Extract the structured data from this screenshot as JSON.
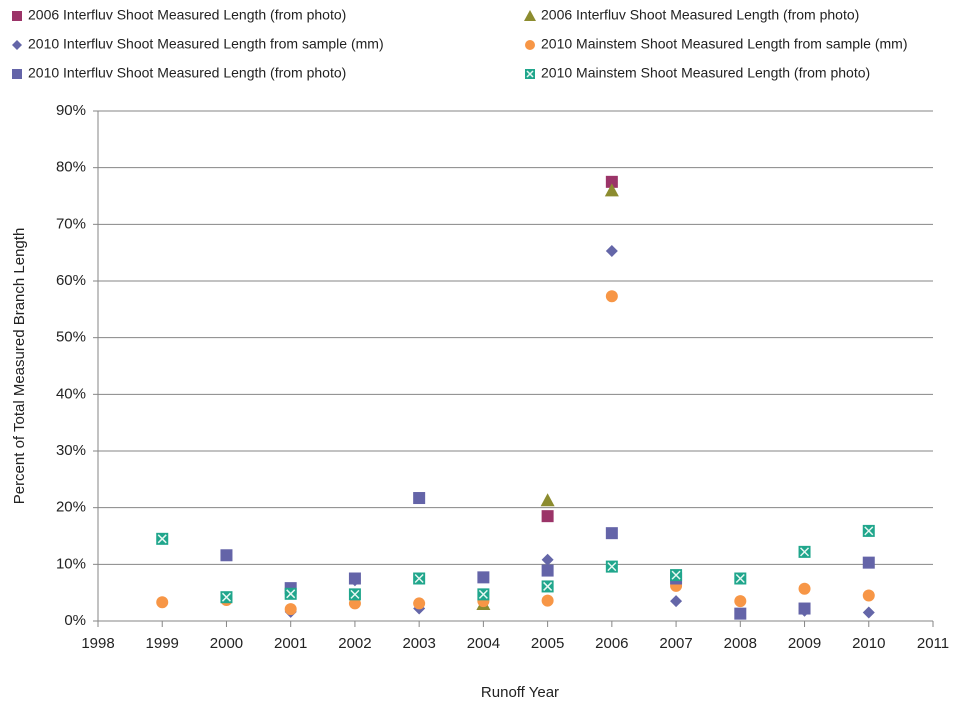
{
  "chart_data": {
    "type": "scatter",
    "x_label": "Runoff Year",
    "y_label": "Percent of Total Measured Branch Length",
    "xlim": [
      1998,
      2011
    ],
    "xticks": [
      1998,
      1999,
      2000,
      2001,
      2002,
      2003,
      2004,
      2005,
      2006,
      2007,
      2008,
      2009,
      2010,
      2011
    ],
    "ylim": [
      0,
      90
    ],
    "yticks": [
      {
        "value": 0,
        "label": "0%"
      },
      {
        "value": 10,
        "label": "10%"
      },
      {
        "value": 20,
        "label": "20%"
      },
      {
        "value": 30,
        "label": "30%"
      },
      {
        "value": 40,
        "label": "40%"
      },
      {
        "value": 50,
        "label": "50%"
      },
      {
        "value": 60,
        "label": "60%"
      },
      {
        "value": 70,
        "label": "70%"
      },
      {
        "value": 80,
        "label": "80%"
      },
      {
        "value": 90,
        "label": "90%"
      }
    ],
    "grid": true,
    "series": [
      {
        "name": "2006 Interfluv Shoot Measured Length (from photo)",
        "color": "#9b3468",
        "marker": "square",
        "x": [
          2005,
          2006
        ],
        "values": [
          18.5,
          77.5
        ]
      },
      {
        "name": "2006 Interfluv Shoot Measured Length (from photo)",
        "color": "#8c8c2f",
        "marker": "triangle",
        "x": [
          2004,
          2005,
          2006
        ],
        "values": [
          3.0,
          21.3,
          76.0
        ]
      },
      {
        "name": "2010 Interfluv Shoot Measured Length from sample (mm)",
        "color": "#6466a8",
        "marker": "diamond",
        "x": [
          2001,
          2002,
          2003,
          2005,
          2006,
          2007,
          2009,
          2010
        ],
        "values": [
          1.6,
          7.2,
          2.2,
          10.8,
          65.3,
          3.5,
          1.8,
          1.5
        ]
      },
      {
        "name": "2010 Mainstem Shoot Measured Length from sample (mm)",
        "color": "#f79646",
        "marker": "circle",
        "x": [
          1999,
          2000,
          2001,
          2002,
          2003,
          2004,
          2005,
          2006,
          2007,
          2008,
          2009,
          2010
        ],
        "values": [
          3.3,
          3.7,
          2.1,
          3.1,
          3.1,
          3.5,
          3.6,
          57.3,
          6.2,
          3.5,
          5.7,
          4.5
        ]
      },
      {
        "name": "2010 Interfluv Shoot Measured Length (from photo)",
        "color": "#6464a8",
        "marker": "square",
        "x": [
          2000,
          2001,
          2002,
          2003,
          2004,
          2005,
          2006,
          2007,
          2008,
          2009,
          2010
        ],
        "values": [
          11.6,
          5.8,
          7.5,
          21.7,
          7.7,
          8.9,
          15.5,
          7.5,
          1.3,
          2.2,
          10.3
        ]
      },
      {
        "name": "2010 Mainstem Shoot Measured Length (from photo)",
        "color": "#20a68c",
        "marker": "squarex",
        "x": [
          1999,
          2000,
          2001,
          2002,
          2003,
          2004,
          2005,
          2006,
          2007,
          2008,
          2009,
          2010
        ],
        "values": [
          14.5,
          4.2,
          4.8,
          4.7,
          7.5,
          4.7,
          6.1,
          9.6,
          8.1,
          7.5,
          12.2,
          15.9
        ]
      }
    ]
  }
}
